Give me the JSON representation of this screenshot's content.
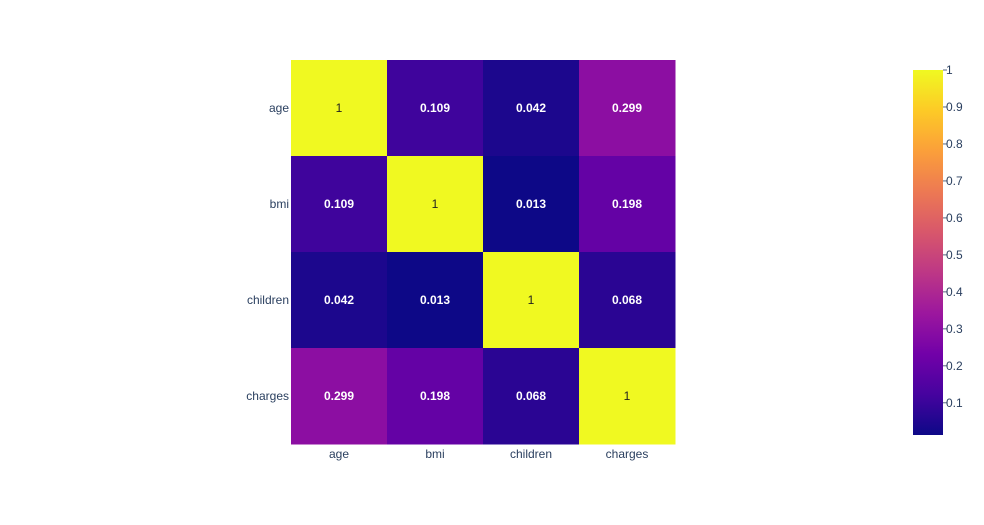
{
  "chart_data": {
    "type": "heatmap",
    "title": "",
    "xlabel": "",
    "ylabel": "",
    "x": [
      "age",
      "bmi",
      "children",
      "charges"
    ],
    "y": [
      "age",
      "bmi",
      "children",
      "charges"
    ],
    "z": [
      [
        1,
        0.109,
        0.042,
        0.299
      ],
      [
        0.109,
        1,
        0.013,
        0.198
      ],
      [
        0.042,
        0.013,
        1,
        0.068
      ],
      [
        0.299,
        0.198,
        0.068,
        1
      ]
    ],
    "text": [
      [
        "1",
        "0.109",
        "0.042",
        "0.299"
      ],
      [
        "0.109",
        "1",
        "0.013",
        "0.198"
      ],
      [
        "0.042",
        "0.013",
        "1",
        "0.068"
      ],
      [
        "0.299",
        "0.198",
        "0.068",
        "1"
      ]
    ],
    "zmin": 0.013,
    "zmax": 1,
    "colorscale": "Plasma",
    "colorbar": {
      "ticks": [
        0.1,
        0.2,
        0.3,
        0.4,
        0.5,
        0.6,
        0.7,
        0.8,
        0.9,
        1
      ],
      "tick_labels": [
        "0.1",
        "0.2",
        "0.3",
        "0.4",
        "0.5",
        "0.6",
        "0.7",
        "0.8",
        "0.9",
        "1"
      ]
    },
    "grid": false,
    "legend": "colorbar-right"
  },
  "colors": {
    "tick_text": "#2a3f5f",
    "cell_text_dark": "#1f1f1f",
    "cell_text_light": "#ffffff",
    "background": "#ffffff"
  }
}
